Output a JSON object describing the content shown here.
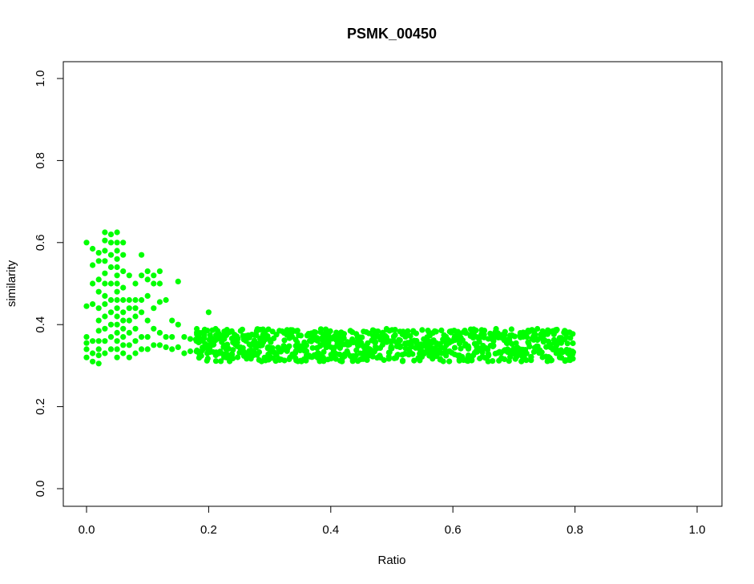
{
  "chart_data": {
    "type": "scatter",
    "title": "PSMK_00450",
    "xlabel": "Ratio",
    "ylabel": "similarity",
    "xlim": [
      0,
      1
    ],
    "ylim": [
      0,
      1
    ],
    "x_ticks": [
      "0.0",
      "0.2",
      "0.4",
      "0.6",
      "0.8",
      "1.0"
    ],
    "y_ticks": [
      "0.0",
      "0.2",
      "0.4",
      "0.6",
      "0.8",
      "1.0"
    ],
    "grid": false,
    "legend": "none",
    "point_color": "#00ff00",
    "series": [
      {
        "values_note_removed": true,
        "x": [
          0.0,
          0.0,
          0.0,
          0.0,
          0.0,
          0.0,
          0.01,
          0.01,
          0.01,
          0.01,
          0.01,
          0.01,
          0.01,
          0.02,
          0.02,
          0.02,
          0.02,
          0.02,
          0.02,
          0.02,
          0.02,
          0.02,
          0.02,
          0.02,
          0.03,
          0.03,
          0.03,
          0.03,
          0.03,
          0.03,
          0.03,
          0.03,
          0.03,
          0.03,
          0.03,
          0.03,
          0.04,
          0.04,
          0.04,
          0.04,
          0.04,
          0.04,
          0.04,
          0.04,
          0.04,
          0.04,
          0.05,
          0.05,
          0.05,
          0.05,
          0.05,
          0.05,
          0.05,
          0.05,
          0.05,
          0.05,
          0.05,
          0.05,
          0.05,
          0.05,
          0.05,
          0.05,
          0.06,
          0.06,
          0.06,
          0.06,
          0.06,
          0.06,
          0.06,
          0.06,
          0.06,
          0.06,
          0.06,
          0.07,
          0.07,
          0.07,
          0.07,
          0.07,
          0.07,
          0.07,
          0.08,
          0.08,
          0.08,
          0.08,
          0.08,
          0.08,
          0.08,
          0.09,
          0.09,
          0.09,
          0.09,
          0.09,
          0.09,
          0.1,
          0.1,
          0.1,
          0.1,
          0.1,
          0.1,
          0.11,
          0.11,
          0.11,
          0.11,
          0.11,
          0.12,
          0.12,
          0.12,
          0.12,
          0.12,
          0.13,
          0.13,
          0.13,
          0.14,
          0.14,
          0.14,
          0.15,
          0.15,
          0.15,
          0.16,
          0.16,
          0.17,
          0.17,
          0.18,
          0.18,
          0.19,
          0.19,
          0.2,
          0.2
        ],
        "y": [
          0.6,
          0.445,
          0.37,
          0.355,
          0.34,
          0.32,
          0.585,
          0.545,
          0.5,
          0.45,
          0.36,
          0.33,
          0.31,
          0.575,
          0.555,
          0.51,
          0.48,
          0.44,
          0.41,
          0.385,
          0.36,
          0.34,
          0.325,
          0.305,
          0.625,
          0.605,
          0.58,
          0.555,
          0.525,
          0.5,
          0.47,
          0.45,
          0.42,
          0.39,
          0.36,
          0.33,
          0.62,
          0.6,
          0.57,
          0.54,
          0.5,
          0.46,
          0.43,
          0.4,
          0.37,
          0.34,
          0.625,
          0.6,
          0.58,
          0.56,
          0.54,
          0.52,
          0.5,
          0.48,
          0.46,
          0.44,
          0.42,
          0.4,
          0.38,
          0.36,
          0.34,
          0.32,
          0.6,
          0.57,
          0.53,
          0.49,
          0.46,
          0.43,
          0.41,
          0.39,
          0.37,
          0.35,
          0.33,
          0.52,
          0.46,
          0.44,
          0.41,
          0.38,
          0.35,
          0.32,
          0.5,
          0.46,
          0.44,
          0.42,
          0.39,
          0.36,
          0.33,
          0.57,
          0.52,
          0.46,
          0.43,
          0.37,
          0.34,
          0.53,
          0.51,
          0.47,
          0.41,
          0.37,
          0.34,
          0.52,
          0.5,
          0.44,
          0.39,
          0.35,
          0.53,
          0.5,
          0.455,
          0.38,
          0.35,
          0.46,
          0.37,
          0.345,
          0.41,
          0.37,
          0.34,
          0.505,
          0.4,
          0.345,
          0.37,
          0.33,
          0.365,
          0.335,
          0.36,
          0.335,
          0.36,
          0.34,
          0.43,
          0.35
        ]
      }
    ],
    "band": {
      "x_range": [
        0.18,
        0.8
      ],
      "y_center": 0.35,
      "y_spread": 0.04
    }
  }
}
